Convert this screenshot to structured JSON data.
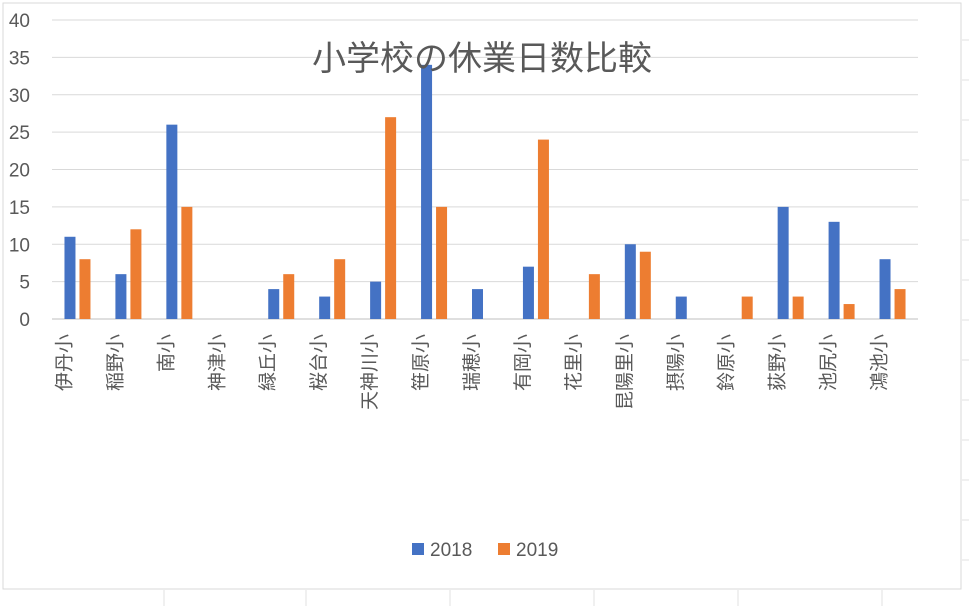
{
  "chart_data": {
    "type": "bar",
    "title": "小学校の休業日数比較",
    "xlabel": "",
    "ylabel": "",
    "ylim": [
      0,
      40
    ],
    "yticks": [
      0,
      5,
      10,
      15,
      20,
      25,
      30,
      35,
      40
    ],
    "grid": true,
    "legend_position": "bottom",
    "categories": [
      "伊丹小",
      "稲野小",
      "南小",
      "神津小",
      "緑丘小",
      "桜台小",
      "天神川小",
      "笹原小",
      "瑞穂小",
      "有岡小",
      "花里小",
      "昆陽里小",
      "摂陽小",
      "鈴原小",
      "荻野小",
      "池尻小",
      "鴻池小"
    ],
    "series": [
      {
        "name": "2018",
        "color": "#4472C4",
        "values": [
          11,
          6,
          26,
          0,
          4,
          3,
          5,
          34,
          4,
          7,
          0,
          10,
          3,
          0,
          15,
          13,
          8
        ]
      },
      {
        "name": "2019",
        "color": "#ED7D31",
        "values": [
          8,
          12,
          15,
          0,
          6,
          8,
          27,
          15,
          0,
          24,
          6,
          9,
          0,
          3,
          3,
          2,
          4
        ]
      }
    ]
  }
}
